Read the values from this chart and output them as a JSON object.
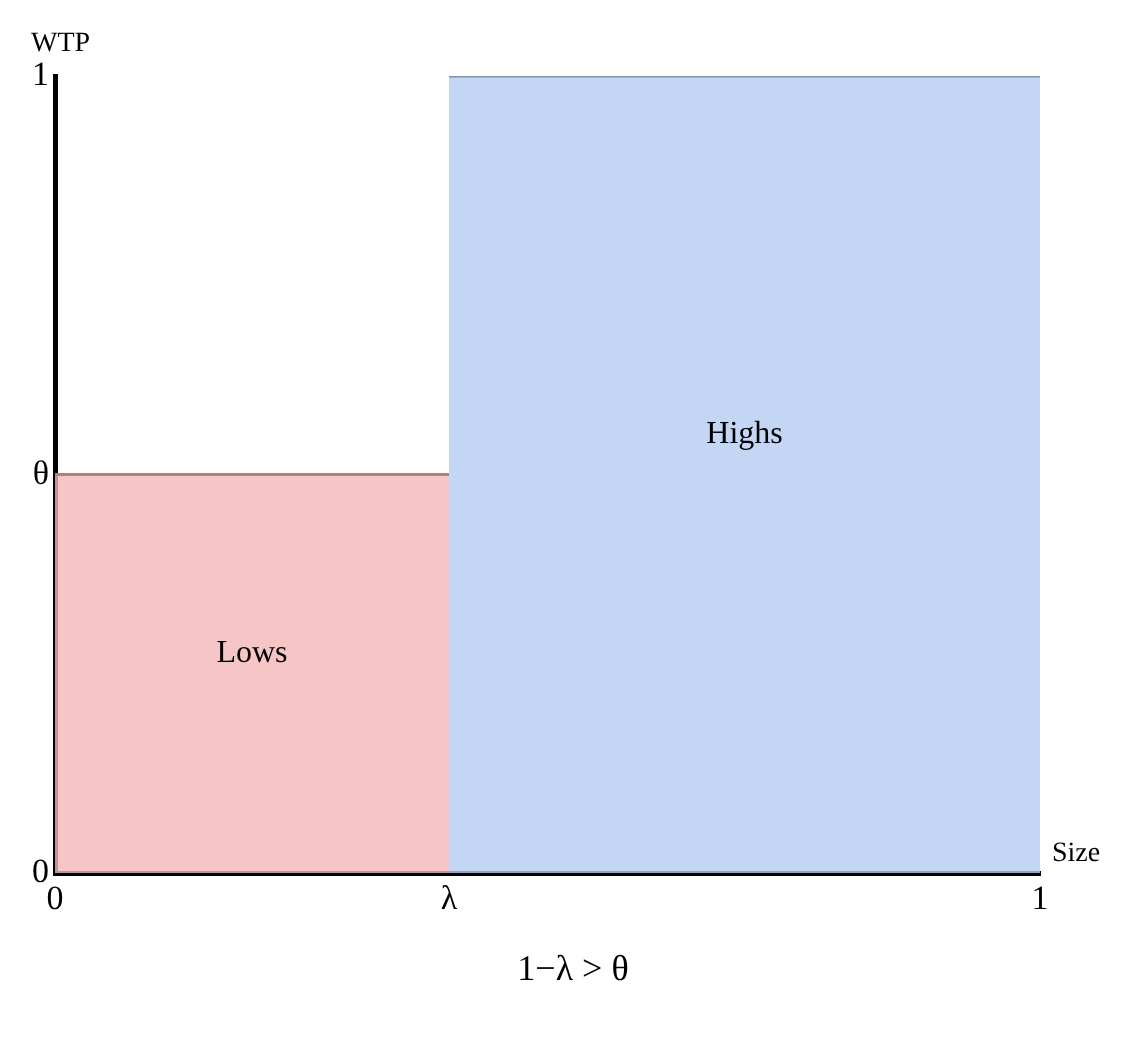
{
  "chart_data": {
    "type": "area",
    "xlabel": "Size",
    "ylabel": "WTP",
    "xlim": [
      0,
      1
    ],
    "ylim": [
      0,
      1
    ],
    "xticks": [
      0,
      {
        "value": 0.4,
        "label": "λ"
      },
      1
    ],
    "yticks": [
      0,
      {
        "value": 0.5,
        "label": "θ"
      },
      1
    ],
    "grid": false,
    "legend": false,
    "series": [
      {
        "name": "Lows",
        "color": "#f4b8b8",
        "x": [
          0,
          0.4
        ],
        "values": [
          0.5,
          0.5
        ]
      },
      {
        "name": "Highs",
        "color": "#b4cdf2",
        "x": [
          0.4,
          1
        ],
        "values": [
          1,
          1
        ]
      }
    ],
    "annotations": [
      "1−λ > θ"
    ]
  }
}
